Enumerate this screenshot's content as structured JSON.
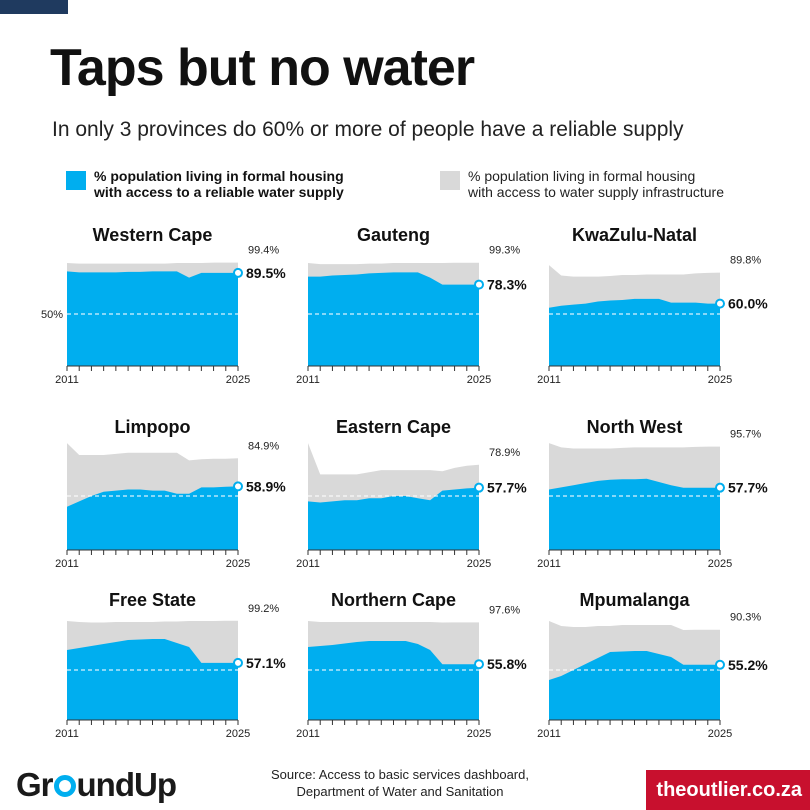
{
  "header": {
    "title": "Taps but no water",
    "subtitle": "In only 3 provinces do 60% or more of people have a reliable supply"
  },
  "legend": {
    "reliable": "% population living in formal housing\nwith access to a reliable water supply",
    "infrastructure": "% population living in formal housing\nwith access to water supply infrastructure"
  },
  "footer": {
    "logo_pre": "Gr",
    "logo_post": "undUp",
    "source": "Source: Access to basic services dashboard, Department of Water and Sanitation",
    "brand": "theoutlier.co.za"
  },
  "colors": {
    "reliable": "#00aeef",
    "infrastructure": "#d9d9d9",
    "accent_navy": "#1f3a5f",
    "brand_red": "#c8102e"
  },
  "chart_data": [
    {
      "type": "area",
      "title": "Western Cape",
      "x": [
        2011,
        2012,
        2013,
        2014,
        2015,
        2016,
        2017,
        2018,
        2019,
        2020,
        2021,
        2022,
        2023,
        2024,
        2025
      ],
      "xtick_labels": [
        "2011",
        "2025"
      ],
      "ylim": [
        0,
        100
      ],
      "ref_line": 50,
      "ref_label": "50%",
      "series": [
        {
          "name": "% population living in formal housing with access to water supply infrastructure",
          "values": [
            99,
            98.5,
            98.5,
            98.5,
            98.5,
            98.5,
            98.5,
            98.5,
            98.5,
            99,
            99,
            99,
            99.4,
            99.4,
            99.4
          ],
          "end_label": "99.4%"
        },
        {
          "name": "% population living in formal housing with access to a reliable water supply",
          "values": [
            91,
            90,
            90,
            90,
            90,
            90.5,
            90.5,
            91,
            91,
            91,
            85,
            89.5,
            89.5,
            89.5,
            89.5
          ],
          "end_label": "89.5%"
        }
      ]
    },
    {
      "type": "area",
      "title": "Gauteng",
      "x": [
        2011,
        2012,
        2013,
        2014,
        2015,
        2016,
        2017,
        2018,
        2019,
        2020,
        2021,
        2022,
        2023,
        2024,
        2025
      ],
      "xtick_labels": [
        "2011",
        "2025"
      ],
      "ylim": [
        0,
        100
      ],
      "ref_line": 50,
      "series": [
        {
          "name": "% population living in formal housing with access to water supply infrastructure",
          "values": [
            99,
            98,
            98,
            98,
            98,
            98.5,
            98.5,
            99,
            99,
            99,
            99,
            99,
            99.3,
            99.3,
            99.3
          ],
          "end_label": "99.3%"
        },
        {
          "name": "% population living in formal housing with access to a reliable water supply",
          "values": [
            86,
            86,
            87,
            87.5,
            88,
            89,
            89.5,
            90,
            90,
            90,
            85,
            78.3,
            78.3,
            78.3,
            78.3
          ],
          "end_label": "78.3%"
        }
      ]
    },
    {
      "type": "area",
      "title": "KwaZulu-Natal",
      "x": [
        2011,
        2012,
        2013,
        2014,
        2015,
        2016,
        2017,
        2018,
        2019,
        2020,
        2021,
        2022,
        2023,
        2024,
        2025
      ],
      "xtick_labels": [
        "2011",
        "2025"
      ],
      "ylim": [
        0,
        100
      ],
      "ref_line": 50,
      "series": [
        {
          "name": "% population living in formal housing with access to water supply infrastructure",
          "values": [
            97,
            87,
            86,
            86,
            86,
            86.5,
            87.5,
            87.5,
            88,
            88,
            88,
            88,
            89,
            89.5,
            89.8
          ],
          "end_label": "89.8%"
        },
        {
          "name": "% population living in formal housing with access to a reliable water supply",
          "values": [
            56,
            58,
            59,
            60,
            62,
            63,
            63.5,
            64.5,
            64.5,
            64.5,
            61,
            61,
            61,
            60,
            60.0
          ],
          "end_label": "60.0%"
        }
      ]
    },
    {
      "type": "area",
      "title": "Limpopo",
      "x": [
        2011,
        2012,
        2013,
        2014,
        2015,
        2016,
        2017,
        2018,
        2019,
        2020,
        2021,
        2022,
        2023,
        2024,
        2025
      ],
      "xtick_labels": [
        "2011",
        "2025"
      ],
      "ylim": [
        0,
        100
      ],
      "ref_line": 50,
      "series": [
        {
          "name": "% population living in formal housing with access to water supply infrastructure",
          "values": [
            99,
            88,
            88,
            88,
            89,
            90,
            90,
            90,
            90,
            90,
            83,
            84,
            84.5,
            84.5,
            84.9
          ],
          "end_label": "84.9%"
        },
        {
          "name": "% population living in formal housing with access to a reliable water supply",
          "values": [
            40,
            45,
            50,
            54,
            55,
            56,
            56,
            55,
            55,
            52,
            52,
            58,
            58,
            58.5,
            58.9
          ],
          "end_label": "58.9%"
        }
      ]
    },
    {
      "type": "area",
      "title": "Eastern Cape",
      "x": [
        2011,
        2012,
        2013,
        2014,
        2015,
        2016,
        2017,
        2018,
        2019,
        2020,
        2021,
        2022,
        2023,
        2024,
        2025
      ],
      "xtick_labels": [
        "2011",
        "2025"
      ],
      "ylim": [
        0,
        100
      ],
      "ref_line": 50,
      "series": [
        {
          "name": "% population living in formal housing with access to water supply infrastructure",
          "values": [
            99,
            70,
            70,
            70,
            70,
            72,
            74,
            74,
            74,
            74,
            74,
            73,
            76,
            78,
            78.9
          ],
          "end_label": "78.9%"
        },
        {
          "name": "% population living in formal housing with access to a reliable water supply",
          "values": [
            45,
            44,
            45,
            46,
            46,
            48,
            48,
            50,
            50,
            48,
            46,
            55,
            56,
            57,
            57.7
          ],
          "end_label": "57.7%"
        }
      ]
    },
    {
      "type": "area",
      "title": "North West",
      "x": [
        2011,
        2012,
        2013,
        2014,
        2015,
        2016,
        2017,
        2018,
        2019,
        2020,
        2021,
        2022,
        2023,
        2024,
        2025
      ],
      "xtick_labels": [
        "2011",
        "2025"
      ],
      "ylim": [
        0,
        100
      ],
      "ref_line": 50,
      "series": [
        {
          "name": "% population living in formal housing with access to water supply infrastructure",
          "values": [
            99,
            95,
            94,
            94,
            94,
            94,
            94.5,
            95,
            95,
            95,
            95,
            95,
            95.5,
            95.7,
            95.7
          ],
          "end_label": "95.7%"
        },
        {
          "name": "% population living in formal housing with access to a reliable water supply",
          "values": [
            56,
            58,
            60,
            62,
            64,
            65,
            65.5,
            65.5,
            66,
            63,
            60,
            57.7,
            57.7,
            57.7,
            57.7
          ],
          "end_label": "57.7%"
        }
      ]
    },
    {
      "type": "area",
      "title": "Free State",
      "x": [
        2011,
        2012,
        2013,
        2014,
        2015,
        2016,
        2017,
        2018,
        2019,
        2020,
        2021,
        2022,
        2023,
        2024,
        2025
      ],
      "xtick_labels": [
        "2011",
        "2025"
      ],
      "ylim": [
        0,
        100
      ],
      "ref_line": 50,
      "series": [
        {
          "name": "% population living in formal housing with access to water supply infrastructure",
          "values": [
            99,
            98,
            97.5,
            97.5,
            98,
            98,
            98,
            98,
            98.5,
            98.5,
            99,
            99,
            99,
            99.2,
            99.2
          ],
          "end_label": "99.2%"
        },
        {
          "name": "% population living in formal housing with access to a reliable water supply",
          "values": [
            70,
            72,
            74,
            76,
            78,
            80,
            80.5,
            81,
            81,
            77,
            73,
            57.1,
            57.1,
            57.1,
            57.1
          ],
          "end_label": "57.1%"
        }
      ]
    },
    {
      "type": "area",
      "title": "Northern Cape",
      "x": [
        2011,
        2012,
        2013,
        2014,
        2015,
        2016,
        2017,
        2018,
        2019,
        2020,
        2021,
        2022,
        2023,
        2024,
        2025
      ],
      "xtick_labels": [
        "2011",
        "2025"
      ],
      "ylim": [
        0,
        100
      ],
      "ref_line": 50,
      "series": [
        {
          "name": "% population living in formal housing with access to water supply infrastructure",
          "values": [
            99,
            98,
            98,
            98,
            98,
            98,
            98,
            98,
            98,
            98,
            98,
            97.5,
            97.6,
            97.6,
            97.6
          ],
          "end_label": "97.6%"
        },
        {
          "name": "% population living in formal housing with access to a reliable water supply",
          "values": [
            73,
            74,
            75,
            76.5,
            78,
            79,
            79,
            79,
            79,
            76,
            70,
            55.8,
            55.8,
            55.8,
            55.8
          ],
          "end_label": "55.8%"
        }
      ]
    },
    {
      "type": "area",
      "title": "Mpumalanga",
      "x": [
        2011,
        2012,
        2013,
        2014,
        2015,
        2016,
        2017,
        2018,
        2019,
        2020,
        2021,
        2022,
        2023,
        2024,
        2025
      ],
      "xtick_labels": [
        "2011",
        "2025"
      ],
      "ylim": [
        0,
        100
      ],
      "ref_line": 50,
      "series": [
        {
          "name": "% population living in formal housing with access to water supply infrastructure",
          "values": [
            99,
            94,
            93,
            93,
            94,
            94,
            95,
            95,
            95,
            95,
            95,
            90,
            90.3,
            90.3,
            90.3
          ],
          "end_label": "90.3%"
        },
        {
          "name": "% population living in formal housing with access to a reliable water supply",
          "values": [
            40,
            44,
            50,
            56,
            62,
            68,
            68.5,
            69,
            69,
            66,
            63,
            55.2,
            55.2,
            55.2,
            55.2
          ],
          "end_label": "55.2%"
        }
      ]
    }
  ]
}
